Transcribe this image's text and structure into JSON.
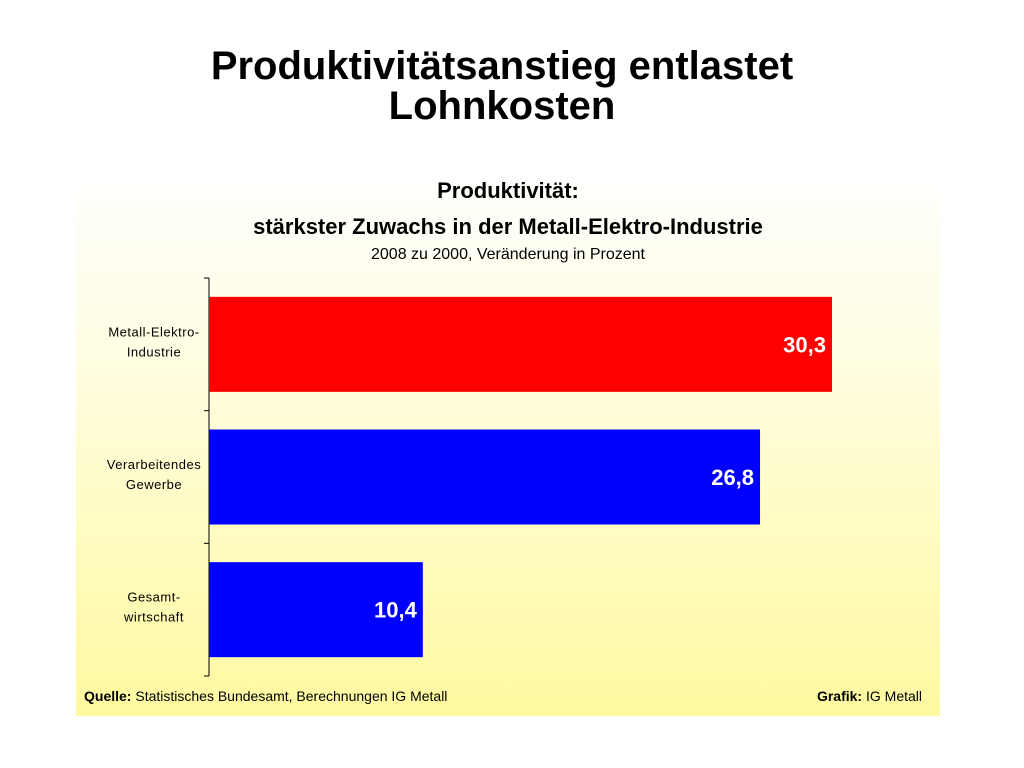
{
  "slide": {
    "title_line1": "Produktivitätsanstieg entlastet",
    "title_line2": "Lohnkosten"
  },
  "chart_data": {
    "type": "bar",
    "orientation": "horizontal",
    "title": "Produktivität:",
    "subtitle": "stärkster Zuwachs in der Metall-Elektro-Industrie",
    "note": "2008 zu 2000, Veränderung in Prozent",
    "categories": [
      [
        "Metall-Elektro-",
        "Industrie"
      ],
      [
        "Verarbeitendes",
        "Gewerbe"
      ],
      [
        "Gesamt-",
        "wirtschaft"
      ]
    ],
    "values": [
      30.3,
      26.8,
      10.4
    ],
    "value_labels": [
      "30,3",
      "26,8",
      "10,4"
    ],
    "colors": [
      "#ff0000",
      "#0000ff",
      "#0000ff"
    ],
    "xlim": [
      0,
      30.3
    ],
    "grid": false
  },
  "footer": {
    "source_label": "Quelle:",
    "source_text": "Statistisches Bundesamt, Berechnungen IG Metall",
    "credit_label": "Grafik:",
    "credit_text": "IG Metall"
  }
}
